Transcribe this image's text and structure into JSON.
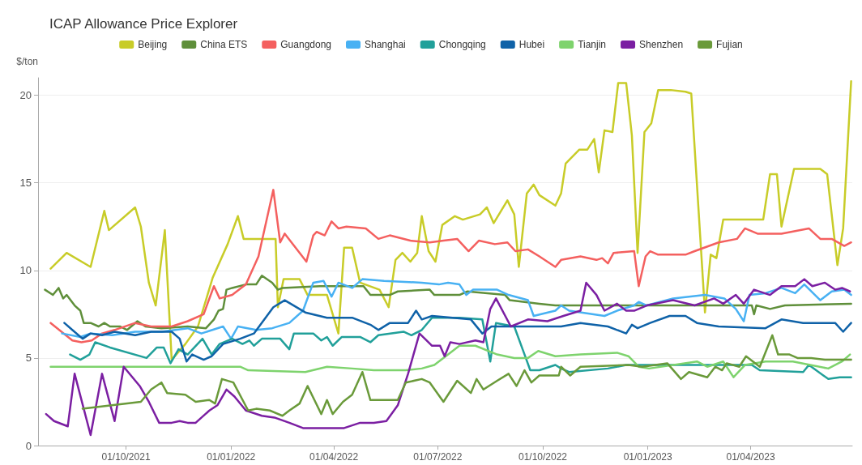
{
  "chart_data": {
    "type": "line",
    "title": "ICAP Allowance Price Explorer",
    "ylabel": "$/ton",
    "xlim": [
      "2021-07-16",
      "2023-06-29"
    ],
    "xticks": [
      {
        "value": "2021-10-01",
        "label": "01/10/2021"
      },
      {
        "value": "2022-01-01",
        "label": "01/01/2022"
      },
      {
        "value": "2022-04-01",
        "label": "01/04/2022"
      },
      {
        "value": "2022-07-01",
        "label": "01/07/2022"
      },
      {
        "value": "2022-10-01",
        "label": "01/10/2022"
      },
      {
        "value": "2023-01-01",
        "label": "01/01/2023"
      },
      {
        "value": "2023-04-01",
        "label": "01/04/2023"
      }
    ],
    "ylim": [
      0,
      21
    ],
    "yticks": [
      0,
      5,
      10,
      15,
      20
    ],
    "grid": "y",
    "legend": "top",
    "marker": "none",
    "line_style": "solid",
    "series": [
      {
        "name": "Beijing",
        "color": "#c8cc28",
        "x": [
          "2021-07-27",
          "2021-08-10",
          "2021-08-31",
          "2021-09-12",
          "2021-09-16",
          "2021-10-09",
          "2021-10-14",
          "2021-10-21",
          "2021-10-27",
          "2021-11-04",
          "2021-11-10",
          "2021-11-22",
          "2021-12-03",
          "2021-12-16",
          "2021-12-29",
          "2022-01-07",
          "2022-01-12",
          "2022-02-09",
          "2022-02-11",
          "2022-02-16",
          "2022-03-02",
          "2022-03-09",
          "2022-03-26",
          "2022-04-05",
          "2022-04-10",
          "2022-04-17",
          "2022-04-24",
          "2022-05-11",
          "2022-05-19",
          "2022-05-25",
          "2022-05-31",
          "2022-06-07",
          "2022-06-13",
          "2022-06-17",
          "2022-06-23",
          "2022-06-29",
          "2022-07-05",
          "2022-07-16",
          "2022-07-23",
          "2022-08-07",
          "2022-08-13",
          "2022-08-19",
          "2022-08-31",
          "2022-09-06",
          "2022-09-10",
          "2022-09-17",
          "2022-09-23",
          "2022-09-28",
          "2022-10-12",
          "2022-10-17",
          "2022-10-21",
          "2022-11-02",
          "2022-11-09",
          "2022-11-15",
          "2022-11-19",
          "2022-11-24",
          "2022-12-01",
          "2022-12-06",
          "2022-12-13",
          "2022-12-18",
          "2022-12-23",
          "2022-12-29",
          "2023-01-04",
          "2023-01-10",
          "2023-01-21",
          "2023-02-03",
          "2023-02-08",
          "2023-02-20",
          "2023-02-25",
          "2023-03-02",
          "2023-03-08",
          "2023-04-12",
          "2023-04-18",
          "2023-04-24",
          "2023-04-28",
          "2023-05-09",
          "2023-06-01",
          "2023-06-07",
          "2023-06-16",
          "2023-06-21",
          "2023-06-28"
        ],
        "values": [
          10.1,
          11.0,
          10.2,
          13.4,
          12.3,
          13.6,
          12.5,
          9.3,
          8.0,
          12.3,
          4.9,
          5.8,
          6.8,
          9.6,
          11.5,
          13.1,
          11.8,
          11.8,
          7.9,
          9.5,
          9.5,
          8.6,
          8.6,
          6.4,
          11.3,
          11.3,
          9.3,
          8.9,
          7.9,
          10.6,
          11.0,
          10.5,
          11.0,
          13.1,
          11.1,
          10.5,
          12.6,
          13.1,
          12.9,
          13.2,
          13.6,
          12.7,
          14.0,
          13.2,
          10.2,
          14.4,
          14.9,
          14.3,
          13.7,
          14.4,
          16.1,
          16.9,
          16.9,
          17.5,
          15.6,
          18.0,
          17.9,
          20.7,
          20.7,
          17.7,
          11.0,
          17.9,
          18.4,
          20.3,
          20.3,
          20.2,
          20.1,
          7.6,
          10.9,
          10.7,
          12.9,
          12.9,
          15.5,
          15.5,
          12.5,
          15.8,
          15.8,
          15.5,
          10.3,
          12.4,
          20.8
        ]
      },
      {
        "name": "China ETS",
        "color": "#5f8f3a",
        "x": [
          "2021-07-22",
          "2021-07-29",
          "2021-08-03",
          "2021-08-07",
          "2021-08-10",
          "2021-08-17",
          "2021-08-22",
          "2021-08-25",
          "2021-08-31",
          "2021-09-07",
          "2021-09-12",
          "2021-09-17",
          "2021-09-26",
          "2021-10-02",
          "2021-10-11",
          "2021-10-18",
          "2021-11-01",
          "2021-11-24",
          "2021-12-10",
          "2021-12-17",
          "2021-12-21",
          "2021-12-25",
          "2021-12-28",
          "2022-01-02",
          "2022-01-14",
          "2022-01-23",
          "2022-01-28",
          "2022-02-06",
          "2022-02-11",
          "2022-02-15",
          "2022-03-20",
          "2022-04-27",
          "2022-05-03",
          "2022-05-20",
          "2022-05-27",
          "2022-06-24",
          "2022-06-28",
          "2022-07-20",
          "2022-07-27",
          "2022-08-29",
          "2022-09-02",
          "2022-09-28",
          "2022-10-12",
          "2023-04-02",
          "2023-04-04",
          "2023-04-06",
          "2023-04-18",
          "2023-05-01",
          "2023-06-28"
        ],
        "values": [
          8.9,
          8.6,
          9.0,
          8.4,
          8.6,
          8.0,
          7.7,
          7.0,
          7.0,
          6.8,
          7.0,
          6.8,
          6.8,
          6.6,
          7.1,
          6.8,
          6.7,
          6.8,
          6.7,
          7.2,
          7.7,
          7.8,
          8.9,
          9.0,
          9.2,
          9.2,
          9.7,
          9.3,
          8.9,
          9.0,
          9.1,
          9.1,
          8.6,
          8.6,
          8.8,
          8.9,
          8.6,
          8.6,
          8.8,
          8.6,
          8.3,
          8.1,
          8.0,
          8.0,
          7.5,
          8.0,
          7.8,
          8.0,
          8.1
        ]
      },
      {
        "name": "Guangdong",
        "color": "#f4605f",
        "x": [
          "2021-07-27",
          "2021-08-15",
          "2021-08-23",
          "2021-09-01",
          "2021-09-10",
          "2021-09-21",
          "2021-10-09",
          "2021-10-23",
          "2021-11-10",
          "2021-11-24",
          "2021-12-08",
          "2021-12-17",
          "2021-12-22",
          "2022-01-02",
          "2022-01-14",
          "2022-01-25",
          "2022-02-07",
          "2022-02-13",
          "2022-02-17",
          "2022-03-08",
          "2022-03-14",
          "2022-03-17",
          "2022-03-24",
          "2022-03-30",
          "2022-04-05",
          "2022-04-12",
          "2022-04-29",
          "2022-05-10",
          "2022-05-20",
          "2022-06-07",
          "2022-06-24",
          "2022-07-06",
          "2022-07-18",
          "2022-07-28",
          "2022-08-06",
          "2022-08-20",
          "2022-08-31",
          "2022-09-07",
          "2022-09-18",
          "2022-09-28",
          "2022-10-12",
          "2022-10-17",
          "2022-11-03",
          "2022-11-17",
          "2022-11-22",
          "2022-11-27",
          "2022-12-02",
          "2022-12-20",
          "2022-12-24",
          "2022-12-30",
          "2023-01-03",
          "2023-01-10",
          "2023-02-03",
          "2023-02-11",
          "2023-03-04",
          "2023-03-20",
          "2023-03-27",
          "2023-04-07",
          "2023-04-28",
          "2023-05-22",
          "2023-06-01",
          "2023-06-11",
          "2023-06-22",
          "2023-06-28"
        ],
        "values": [
          7.0,
          6.0,
          5.9,
          6.0,
          6.4,
          6.6,
          7.0,
          6.8,
          6.8,
          7.1,
          7.5,
          9.1,
          8.4,
          8.6,
          9.2,
          10.8,
          14.6,
          11.6,
          12.1,
          10.5,
          12.0,
          12.2,
          12.0,
          12.8,
          12.4,
          12.5,
          12.4,
          11.8,
          12.0,
          11.7,
          11.6,
          11.7,
          11.8,
          11.1,
          11.7,
          11.5,
          11.6,
          11.1,
          11.2,
          10.8,
          10.2,
          10.6,
          10.8,
          10.6,
          10.7,
          10.4,
          11.0,
          11.1,
          9.1,
          10.8,
          11.1,
          10.9,
          10.9,
          11.1,
          11.6,
          11.8,
          12.4,
          12.1,
          12.1,
          12.4,
          11.8,
          11.8,
          11.4,
          11.6
        ]
      },
      {
        "name": "Shanghai",
        "color": "#48b1f3",
        "x": [
          "2021-08-06",
          "2021-08-22",
          "2021-08-31",
          "2021-09-19",
          "2021-10-09",
          "2021-11-01",
          "2021-11-24",
          "2021-12-06",
          "2021-12-25",
          "2022-01-01",
          "2022-01-07",
          "2022-01-23",
          "2022-02-06",
          "2022-02-21",
          "2022-03-05",
          "2022-03-14",
          "2022-03-23",
          "2022-03-30",
          "2022-04-05",
          "2022-04-17",
          "2022-04-26",
          "2022-05-15",
          "2022-06-17",
          "2022-07-02",
          "2022-07-10",
          "2022-07-20",
          "2022-07-26",
          "2022-08-01",
          "2022-08-22",
          "2022-09-01",
          "2022-09-18",
          "2022-09-23",
          "2022-10-12",
          "2022-10-17",
          "2022-10-24",
          "2022-11-24",
          "2022-12-05",
          "2022-12-20",
          "2022-12-24",
          "2022-12-31",
          "2023-01-23",
          "2023-02-20",
          "2023-03-09",
          "2023-03-19",
          "2023-03-26",
          "2023-03-31",
          "2023-04-14",
          "2023-04-28",
          "2023-05-10",
          "2023-05-18",
          "2023-06-01",
          "2023-06-11",
          "2023-06-22",
          "2023-06-28"
        ],
        "values": [
          6.4,
          6.2,
          6.4,
          6.3,
          6.5,
          6.5,
          6.7,
          6.4,
          6.8,
          6.1,
          6.8,
          6.6,
          6.7,
          7.0,
          7.7,
          9.3,
          9.4,
          8.5,
          9.3,
          9.0,
          9.5,
          9.4,
          9.3,
          9.2,
          9.3,
          9.2,
          8.6,
          8.9,
          8.9,
          8.6,
          8.3,
          7.4,
          7.7,
          8.0,
          7.7,
          7.4,
          7.7,
          8.0,
          8.2,
          8.0,
          8.4,
          8.6,
          8.4,
          7.8,
          7.1,
          8.6,
          8.7,
          9.0,
          8.7,
          9.2,
          8.3,
          8.8,
          8.9,
          8.6
        ]
      },
      {
        "name": "Chongqing",
        "color": "#21a09a",
        "x": [
          "2021-08-13",
          "2021-08-22",
          "2021-08-30",
          "2021-09-04",
          "2021-09-17",
          "2021-10-19",
          "2021-10-28",
          "2021-11-03",
          "2021-11-09",
          "2021-11-16",
          "2021-11-24",
          "2021-12-07",
          "2021-12-15",
          "2021-12-22",
          "2022-01-02",
          "2022-01-11",
          "2022-01-17",
          "2022-01-21",
          "2022-01-28",
          "2022-02-13",
          "2022-02-21",
          "2022-02-25",
          "2022-03-14",
          "2022-03-21",
          "2022-03-26",
          "2022-03-31",
          "2022-04-08",
          "2022-04-24",
          "2022-05-03",
          "2022-05-10",
          "2022-06-01",
          "2022-06-08",
          "2022-06-17",
          "2022-06-26",
          "2022-07-20",
          "2022-08-09",
          "2022-08-16",
          "2022-08-21",
          "2022-09-06",
          "2022-09-15",
          "2022-09-20",
          "2022-09-28",
          "2022-10-12",
          "2022-10-17",
          "2022-10-24",
          "2022-11-27",
          "2022-12-13",
          "2023-02-04",
          "2023-04-02",
          "2023-04-09",
          "2023-05-17",
          "2023-05-22",
          "2023-06-08",
          "2023-06-18",
          "2023-06-28"
        ],
        "values": [
          5.2,
          4.9,
          5.2,
          5.9,
          5.6,
          5.0,
          5.6,
          5.6,
          4.7,
          5.5,
          5.2,
          6.1,
          5.2,
          5.8,
          6.1,
          5.8,
          6.0,
          5.7,
          6.1,
          6.1,
          5.5,
          6.4,
          6.4,
          6.0,
          6.2,
          5.7,
          6.2,
          6.2,
          5.9,
          6.3,
          6.5,
          6.3,
          6.6,
          7.3,
          7.3,
          7.2,
          4.8,
          7.0,
          6.8,
          5.2,
          4.3,
          4.3,
          4.6,
          4.4,
          4.2,
          4.4,
          4.6,
          4.6,
          4.6,
          4.3,
          4.2,
          4.6,
          3.8,
          3.9,
          3.9
        ]
      },
      {
        "name": "Hubei",
        "color": "#0f62a8",
        "x": [
          "2021-08-08",
          "2021-08-15",
          "2021-08-24",
          "2021-08-31",
          "2021-09-10",
          "2021-09-21",
          "2021-10-09",
          "2021-10-23",
          "2021-11-10",
          "2021-11-17",
          "2021-11-23",
          "2021-11-28",
          "2021-12-08",
          "2021-12-15",
          "2021-12-25",
          "2022-01-09",
          "2022-01-21",
          "2022-02-07",
          "2022-02-17",
          "2022-03-07",
          "2022-03-26",
          "2022-04-17",
          "2022-05-03",
          "2022-05-10",
          "2022-05-20",
          "2022-06-05",
          "2022-06-12",
          "2022-06-17",
          "2022-06-26",
          "2022-07-30",
          "2022-08-09",
          "2022-08-17",
          "2022-09-06",
          "2022-10-17",
          "2022-11-03",
          "2022-11-27",
          "2022-12-13",
          "2022-12-18",
          "2022-12-23",
          "2023-01-03",
          "2023-01-20",
          "2023-02-03",
          "2023-02-13",
          "2023-03-04",
          "2023-04-14",
          "2023-04-28",
          "2023-05-17",
          "2023-06-14",
          "2023-06-21",
          "2023-06-28"
        ],
        "values": [
          7.0,
          6.6,
          6.1,
          6.4,
          6.3,
          6.5,
          6.3,
          6.5,
          6.5,
          6.1,
          4.8,
          5.2,
          4.9,
          5.1,
          5.8,
          6.1,
          6.4,
          7.9,
          8.3,
          7.6,
          7.3,
          7.3,
          6.9,
          6.6,
          7.0,
          7.0,
          7.7,
          7.2,
          7.4,
          7.2,
          6.4,
          6.8,
          6.8,
          6.8,
          7.0,
          6.8,
          6.4,
          6.9,
          6.7,
          7.0,
          7.4,
          7.4,
          7.0,
          6.8,
          6.7,
          7.2,
          7.0,
          7.0,
          6.5,
          7.0
        ]
      },
      {
        "name": "Tianjin",
        "color": "#7ed36d",
        "x": [
          "2021-07-27",
          "2022-01-09",
          "2022-01-16",
          "2022-03-07",
          "2022-03-26",
          "2022-04-17",
          "2022-05-06",
          "2022-06-03",
          "2022-06-17",
          "2022-06-28",
          "2022-07-08",
          "2022-07-20",
          "2022-08-03",
          "2022-08-22",
          "2022-09-06",
          "2022-09-18",
          "2022-09-27",
          "2022-10-12",
          "2022-11-03",
          "2022-12-05",
          "2022-12-15",
          "2022-12-24",
          "2023-01-02",
          "2023-02-13",
          "2023-02-22",
          "2023-03-08",
          "2023-03-17",
          "2023-03-27",
          "2023-04-14",
          "2023-05-08",
          "2023-06-08",
          "2023-06-20",
          "2023-06-27"
        ],
        "values": [
          4.5,
          4.5,
          4.3,
          4.2,
          4.5,
          4.4,
          4.3,
          4.3,
          4.4,
          4.6,
          5.1,
          5.7,
          5.7,
          5.2,
          5.0,
          5.0,
          5.4,
          5.1,
          5.2,
          5.3,
          5.1,
          4.5,
          4.4,
          4.8,
          4.5,
          4.8,
          3.9,
          4.6,
          4.8,
          4.8,
          4.4,
          4.8,
          5.2
        ]
      },
      {
        "name": "Shenzhen",
        "color": "#7b1fa2",
        "x": [
          "2021-07-23",
          "2021-07-30",
          "2021-08-11",
          "2021-08-17",
          "2021-08-31",
          "2021-09-10",
          "2021-09-21",
          "2021-09-29",
          "2021-10-13",
          "2021-10-21",
          "2021-10-30",
          "2021-11-10",
          "2021-11-17",
          "2021-11-24",
          "2021-12-01",
          "2021-12-13",
          "2021-12-20",
          "2021-12-28",
          "2022-01-04",
          "2022-01-14",
          "2022-01-28",
          "2022-02-08",
          "2022-02-21",
          "2022-03-05",
          "2022-04-10",
          "2022-04-24",
          "2022-05-06",
          "2022-05-17",
          "2022-05-27",
          "2022-06-05",
          "2022-06-15",
          "2022-06-26",
          "2022-07-03",
          "2022-07-07",
          "2022-07-12",
          "2022-07-20",
          "2022-08-03",
          "2022-08-10",
          "2022-08-16",
          "2022-08-21",
          "2022-09-03",
          "2022-09-18",
          "2022-10-05",
          "2022-10-19",
          "2022-11-03",
          "2022-11-08",
          "2022-11-17",
          "2022-11-24",
          "2022-12-05",
          "2022-12-13",
          "2022-12-20",
          "2022-12-31",
          "2023-01-23",
          "2023-02-11",
          "2023-02-28",
          "2023-03-08",
          "2023-03-19",
          "2023-03-26",
          "2023-04-04",
          "2023-04-18",
          "2023-04-28",
          "2023-05-10",
          "2023-05-18",
          "2023-05-25",
          "2023-06-05",
          "2023-06-14",
          "2023-06-20",
          "2023-06-27"
        ],
        "values": [
          1.8,
          1.4,
          1.1,
          4.1,
          0.6,
          4.1,
          1.4,
          4.5,
          3.4,
          2.5,
          1.3,
          1.3,
          1.4,
          1.3,
          1.3,
          2.0,
          2.3,
          3.2,
          2.8,
          2.0,
          1.7,
          1.6,
          1.3,
          1.0,
          1.0,
          1.3,
          1.3,
          1.4,
          2.3,
          4.1,
          6.4,
          5.7,
          5.7,
          5.1,
          5.9,
          5.8,
          6.0,
          5.9,
          7.8,
          8.4,
          6.8,
          7.2,
          7.1,
          7.4,
          7.7,
          9.3,
          8.6,
          7.7,
          8.1,
          7.7,
          7.7,
          8.0,
          8.3,
          8.0,
          8.4,
          8.1,
          8.6,
          8.1,
          8.9,
          8.6,
          9.1,
          9.1,
          9.5,
          9.1,
          9.3,
          8.9,
          9.0,
          8.8
        ]
      },
      {
        "name": "Fujian",
        "color": "#6a9a3a",
        "x": [
          "2021-08-24",
          "2021-10-14",
          "2021-10-23",
          "2021-11-01",
          "2021-11-06",
          "2021-11-22",
          "2021-12-01",
          "2021-12-13",
          "2021-12-18",
          "2021-12-24",
          "2022-01-03",
          "2022-01-16",
          "2022-01-23",
          "2022-02-04",
          "2022-02-15",
          "2022-02-21",
          "2022-03-02",
          "2022-03-09",
          "2022-03-21",
          "2022-03-26",
          "2022-03-31",
          "2022-04-09",
          "2022-04-17",
          "2022-04-26",
          "2022-05-03",
          "2022-05-27",
          "2022-06-03",
          "2022-06-17",
          "2022-06-24",
          "2022-07-06",
          "2022-07-18",
          "2022-07-30",
          "2022-08-04",
          "2022-08-10",
          "2022-08-22",
          "2022-09-01",
          "2022-09-08",
          "2022-09-15",
          "2022-09-21",
          "2022-09-28",
          "2022-10-15",
          "2022-10-17",
          "2022-10-25",
          "2022-11-03",
          "2022-12-15",
          "2022-12-27",
          "2023-01-18",
          "2023-01-30",
          "2023-02-06",
          "2023-02-22",
          "2023-03-01",
          "2023-03-07",
          "2023-03-11",
          "2023-03-22",
          "2023-03-28",
          "2023-04-09",
          "2023-04-20",
          "2023-04-25",
          "2023-05-05",
          "2023-05-12",
          "2023-05-24",
          "2023-06-05",
          "2023-06-28"
        ],
        "values": [
          2.1,
          2.5,
          3.2,
          3.6,
          3.0,
          2.9,
          2.5,
          2.6,
          2.4,
          3.8,
          3.6,
          2.0,
          2.1,
          2.0,
          1.7,
          2.0,
          2.4,
          3.4,
          1.8,
          2.6,
          1.8,
          2.5,
          2.9,
          4.2,
          2.6,
          2.6,
          3.6,
          3.8,
          3.6,
          2.5,
          3.7,
          3.0,
          3.8,
          3.2,
          3.7,
          4.1,
          3.4,
          4.3,
          3.6,
          4.0,
          4.0,
          4.5,
          4.0,
          4.5,
          4.6,
          4.5,
          4.7,
          3.8,
          4.2,
          3.9,
          4.5,
          4.3,
          4.7,
          4.5,
          5.1,
          4.5,
          6.3,
          5.2,
          5.2,
          5.0,
          5.0,
          4.9,
          4.9
        ]
      }
    ]
  }
}
